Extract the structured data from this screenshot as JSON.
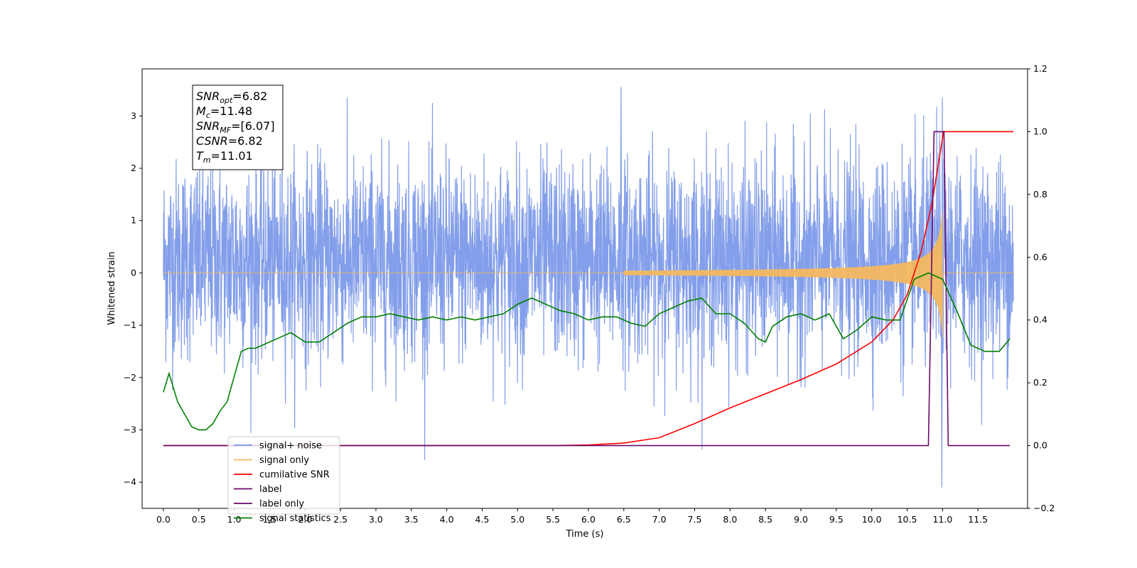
{
  "chart_data": {
    "type": "line",
    "xlabel": "Time (s)",
    "ylabel": "Whitened strain",
    "xlim": [
      -0.3,
      12.2
    ],
    "ylim": [
      -4.5,
      3.9
    ],
    "y2lim": [
      -0.2,
      1.2
    ],
    "grid": false,
    "legend_position": "lower-left",
    "x_ticks": [
      "0.0",
      "0.5",
      "1.0",
      "1.5",
      "2.0",
      "2.5",
      "3.0",
      "3.5",
      "4.0",
      "4.5",
      "5.0",
      "5.5",
      "6.0",
      "6.5",
      "7.0",
      "7.5",
      "8.0",
      "8.5",
      "9.0",
      "9.5",
      "10.0",
      "10.5",
      "11.0",
      "11.5"
    ],
    "y_ticks": [
      "−4",
      "−3",
      "−2",
      "−1",
      "0",
      "1",
      "2",
      "3"
    ],
    "y2_ticks": [
      "−0.2",
      "0.0",
      "0.2",
      "0.4",
      "0.6",
      "0.8",
      "1.0",
      "1.2"
    ],
    "annotation": {
      "lines": [
        {
          "main": "SNR",
          "sub": "opt",
          "rest": "=6.82"
        },
        {
          "main": "M",
          "sub": "c",
          "rest": "=11.48"
        },
        {
          "main": "SNR",
          "sub": "MF",
          "rest": "=[6.07]"
        },
        {
          "main": "CSNR",
          "sub": "",
          "rest": "=6.82"
        },
        {
          "main": "T",
          "sub": "m",
          "rest": "=11.01"
        }
      ]
    },
    "series": [
      {
        "name": "signal+ noise",
        "color": "#7694e8",
        "axis": "left",
        "kind": "noise",
        "x_range": [
          0,
          12
        ],
        "typical_band": [
          -1.5,
          2.0
        ],
        "peak_max": 3.55,
        "peak_min": -4.1
      },
      {
        "name": "signal only",
        "color": "#f5b860",
        "axis": "left",
        "kind": "chirp",
        "x_range": [
          0,
          12
        ],
        "onset": 6.5,
        "peak_time": 11.0,
        "peak_amplitude": 1.25
      },
      {
        "name": "cumilative SNR",
        "color": "#ff0000",
        "axis": "right",
        "x": [
          0,
          5.5,
          6.0,
          6.5,
          7.0,
          7.5,
          8.0,
          8.5,
          9.0,
          9.5,
          10.0,
          10.3,
          10.5,
          10.7,
          10.85,
          11.0,
          11.01,
          12.0
        ],
        "y": [
          0,
          0,
          0.002,
          0.008,
          0.025,
          0.07,
          0.12,
          0.165,
          0.21,
          0.26,
          0.33,
          0.4,
          0.48,
          0.62,
          0.77,
          0.98,
          1.0,
          1.0
        ]
      },
      {
        "name": "label",
        "color": "#6a0a6a",
        "axis": "right",
        "x": [
          0,
          10.8,
          10.88,
          11.02,
          11.08,
          11.95
        ],
        "y": [
          0,
          0,
          1.0,
          1.0,
          0,
          0
        ]
      },
      {
        "name": "label only",
        "color": "#6a0a6a",
        "axis": "right",
        "x": [],
        "y": []
      },
      {
        "name": "signal statistics",
        "color": "#007f00",
        "axis": "right",
        "x": [
          0,
          0.08,
          0.2,
          0.3,
          0.4,
          0.5,
          0.6,
          0.7,
          0.8,
          0.9,
          1.0,
          1.1,
          1.2,
          1.3,
          1.5,
          1.7,
          1.8,
          2.0,
          2.2,
          2.4,
          2.6,
          2.8,
          3.0,
          3.2,
          3.4,
          3.6,
          3.8,
          4.0,
          4.2,
          4.4,
          4.6,
          4.8,
          5.0,
          5.2,
          5.4,
          5.6,
          5.8,
          6.0,
          6.2,
          6.4,
          6.6,
          6.8,
          7.0,
          7.2,
          7.4,
          7.6,
          7.8,
          8.0,
          8.2,
          8.4,
          8.5,
          8.6,
          8.8,
          9.0,
          9.2,
          9.4,
          9.6,
          9.8,
          10.0,
          10.2,
          10.4,
          10.6,
          10.8,
          11.0,
          11.2,
          11.4,
          11.6,
          11.8,
          11.95
        ],
        "y": [
          0.17,
          0.23,
          0.14,
          0.1,
          0.06,
          0.05,
          0.05,
          0.07,
          0.11,
          0.14,
          0.22,
          0.3,
          0.31,
          0.31,
          0.33,
          0.35,
          0.36,
          0.33,
          0.33,
          0.36,
          0.39,
          0.41,
          0.41,
          0.42,
          0.41,
          0.4,
          0.41,
          0.4,
          0.41,
          0.4,
          0.41,
          0.42,
          0.45,
          0.47,
          0.45,
          0.43,
          0.42,
          0.4,
          0.41,
          0.41,
          0.39,
          0.38,
          0.42,
          0.44,
          0.46,
          0.47,
          0.42,
          0.42,
          0.39,
          0.34,
          0.33,
          0.38,
          0.41,
          0.42,
          0.4,
          0.42,
          0.34,
          0.37,
          0.41,
          0.4,
          0.4,
          0.53,
          0.55,
          0.53,
          0.43,
          0.32,
          0.3,
          0.3,
          0.34
        ]
      }
    ]
  }
}
